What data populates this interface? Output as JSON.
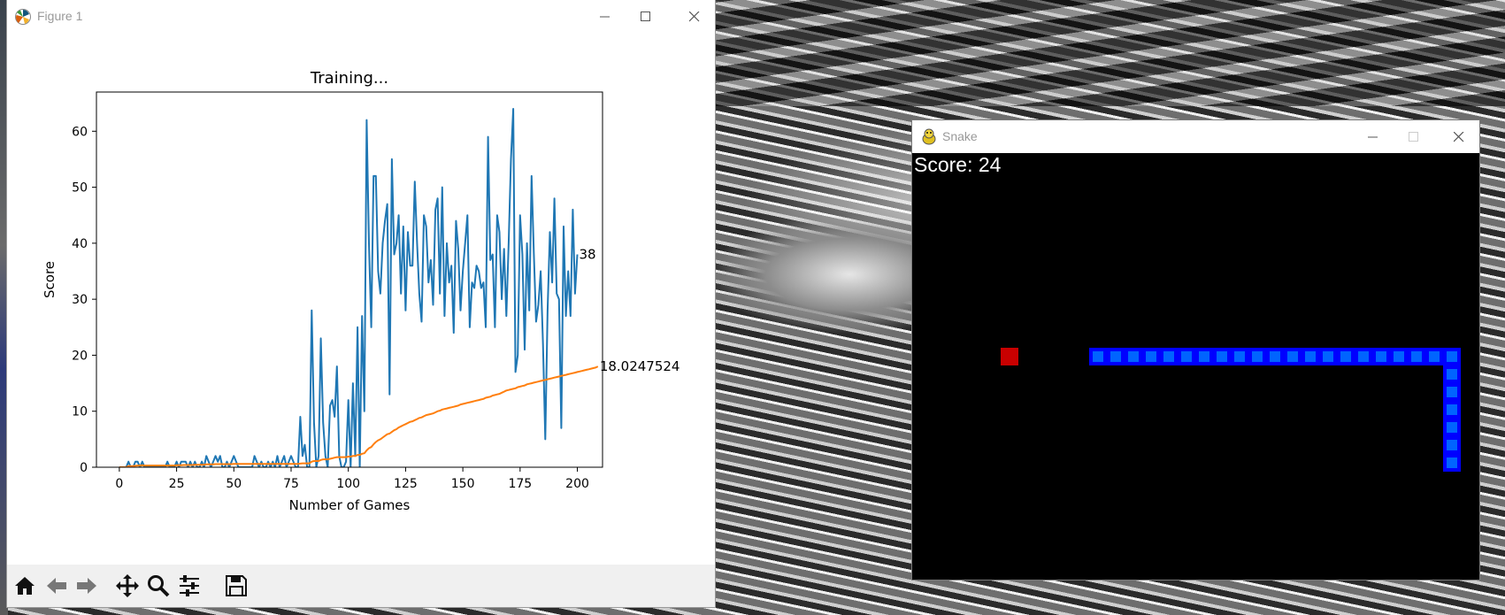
{
  "figure_window": {
    "title": "Figure 1",
    "controls": {
      "minimize": "minimize",
      "maximize": "maximize",
      "close": "close"
    },
    "toolbar": {
      "buttons": [
        "home-icon",
        "back-arrow-icon",
        "forward-arrow-icon",
        "pan-icon",
        "zoom-icon",
        "configure-subplots-icon",
        "save-icon"
      ]
    }
  },
  "chart_data": {
    "type": "line",
    "title": "Training...",
    "xlabel": "Number of Games",
    "ylabel": "Score",
    "xlim": [
      -10,
      211
    ],
    "ylim": [
      0,
      67
    ],
    "xticks": [
      0,
      25,
      50,
      75,
      100,
      125,
      150,
      175,
      200
    ],
    "yticks": [
      0,
      10,
      20,
      30,
      40,
      50,
      60
    ],
    "grid": false,
    "legend": "none",
    "series": [
      {
        "color": "#1f77b4",
        "values": [
          0,
          0,
          0,
          0,
          1,
          0,
          0,
          1,
          1,
          0,
          1,
          0,
          0,
          0,
          0,
          0,
          0,
          0,
          0,
          0,
          0,
          1,
          0,
          0,
          0,
          1,
          0,
          1,
          1,
          1,
          0,
          1,
          0,
          1,
          0,
          0,
          1,
          0,
          2,
          1,
          0,
          1,
          2,
          1,
          2,
          0,
          0,
          1,
          0,
          1,
          2,
          1,
          0,
          0,
          0,
          0,
          0,
          0,
          0,
          2,
          1,
          0,
          1,
          0,
          0,
          1,
          0,
          1,
          0,
          2,
          0,
          1,
          2,
          0,
          1,
          2,
          1,
          0,
          0,
          9,
          2,
          4,
          0,
          0,
          28,
          8,
          0,
          2,
          23,
          8,
          2,
          0,
          11,
          12,
          9,
          18,
          2,
          0,
          0,
          1,
          12,
          0,
          15,
          2,
          25,
          0,
          27,
          10,
          62,
          40,
          25,
          52,
          52,
          35,
          31,
          40,
          44,
          47,
          13,
          55,
          38,
          40,
          45,
          31,
          43,
          28,
          42,
          36,
          36,
          51,
          40,
          31,
          26,
          45,
          43,
          33,
          37,
          29,
          46,
          48,
          31,
          50,
          27,
          40,
          33,
          36,
          24,
          44,
          39,
          28,
          35,
          40,
          45,
          25,
          33,
          32,
          36,
          35,
          32,
          33,
          25,
          59,
          37,
          38,
          25,
          45,
          42,
          30,
          39,
          27,
          40,
          55,
          64,
          17,
          20,
          45,
          38,
          21,
          40,
          28,
          52,
          38,
          26,
          29,
          35,
          22,
          5,
          28,
          42,
          33,
          48,
          31,
          30,
          7,
          43,
          27,
          35,
          27,
          46,
          31,
          38
        ],
        "end_label": "38"
      },
      {
        "color": "#ff7f0e",
        "values": [
          0,
          0,
          0,
          0,
          0.2,
          0.2,
          0.2,
          0.25,
          0.3,
          0.3,
          0.35,
          0.3,
          0.3,
          0.3,
          0.3,
          0.3,
          0.3,
          0.3,
          0.3,
          0.3,
          0.3,
          0.3,
          0.3,
          0.3,
          0.3,
          0.35,
          0.35,
          0.35,
          0.4,
          0.4,
          0.4,
          0.4,
          0.4,
          0.45,
          0.45,
          0.45,
          0.45,
          0.45,
          0.5,
          0.5,
          0.5,
          0.5,
          0.55,
          0.55,
          0.55,
          0.55,
          0.55,
          0.55,
          0.55,
          0.55,
          0.6,
          0.6,
          0.6,
          0.6,
          0.6,
          0.6,
          0.6,
          0.6,
          0.6,
          0.6,
          0.6,
          0.6,
          0.6,
          0.6,
          0.6,
          0.6,
          0.6,
          0.6,
          0.6,
          0.6,
          0.6,
          0.6,
          0.6,
          0.6,
          0.6,
          0.6,
          0.6,
          0.6,
          0.6,
          0.65,
          0.7,
          0.7,
          0.7,
          0.7,
          1.0,
          1.1,
          1.1,
          1.1,
          1.3,
          1.4,
          1.4,
          1.4,
          1.5,
          1.6,
          1.7,
          1.8,
          1.8,
          1.8,
          1.8,
          1.8,
          1.9,
          1.9,
          2.0,
          2.0,
          2.2,
          2.2,
          2.4,
          2.5,
          3.0,
          3.4,
          3.6,
          4.1,
          4.5,
          4.8,
          5.0,
          5.3,
          5.6,
          5.9,
          6.0,
          6.3,
          6.6,
          6.8,
          7.1,
          7.3,
          7.5,
          7.7,
          7.9,
          8.1,
          8.2,
          8.4,
          8.6,
          8.8,
          8.9,
          9.1,
          9.3,
          9.4,
          9.5,
          9.6,
          9.8,
          10.0,
          10.1,
          10.3,
          10.4,
          10.5,
          10.6,
          10.7,
          10.8,
          10.9,
          11.0,
          11.2,
          11.3,
          11.4,
          11.5,
          11.6,
          11.7,
          11.8,
          11.9,
          12.0,
          12.1,
          12.2,
          12.4,
          12.5,
          12.6,
          12.8,
          12.9,
          13.0,
          13.1,
          13.3,
          13.5,
          13.7,
          13.8,
          13.9,
          14.0,
          14.1,
          14.3,
          14.4,
          14.5,
          14.6,
          14.8,
          14.9,
          15.0,
          15.1,
          15.2,
          15.3,
          15.4,
          15.5,
          15.6,
          15.7,
          15.8,
          15.9,
          16.0,
          16.1,
          16.2,
          16.3,
          16.4,
          16.5,
          16.6,
          16.7,
          16.8,
          16.9,
          17.0,
          17.1,
          17.2,
          17.3,
          17.4,
          17.5,
          17.6,
          17.7,
          17.8,
          18.0
        ],
        "end_label": "18.0247524"
      }
    ]
  },
  "snake_window": {
    "title": "Snake",
    "score_text": "Score: 24",
    "colors": {
      "background": "#000000",
      "food": "#c80000",
      "snake_outer": "#0000ff",
      "snake_inner": "#0064ff"
    },
    "food_cell": [
      5,
      11
    ],
    "snake_cells": [
      [
        10,
        11
      ],
      [
        11,
        11
      ],
      [
        12,
        11
      ],
      [
        13,
        11
      ],
      [
        14,
        11
      ],
      [
        15,
        11
      ],
      [
        16,
        11
      ],
      [
        17,
        11
      ],
      [
        18,
        11
      ],
      [
        19,
        11
      ],
      [
        20,
        11
      ],
      [
        21,
        11
      ],
      [
        22,
        11
      ],
      [
        23,
        11
      ],
      [
        24,
        11
      ],
      [
        25,
        11
      ],
      [
        26,
        11
      ],
      [
        27,
        11
      ],
      [
        28,
        11
      ],
      [
        29,
        11
      ],
      [
        30,
        11
      ],
      [
        30,
        12
      ],
      [
        30,
        13
      ],
      [
        30,
        14
      ],
      [
        30,
        15
      ],
      [
        30,
        16
      ],
      [
        30,
        17
      ]
    ]
  }
}
